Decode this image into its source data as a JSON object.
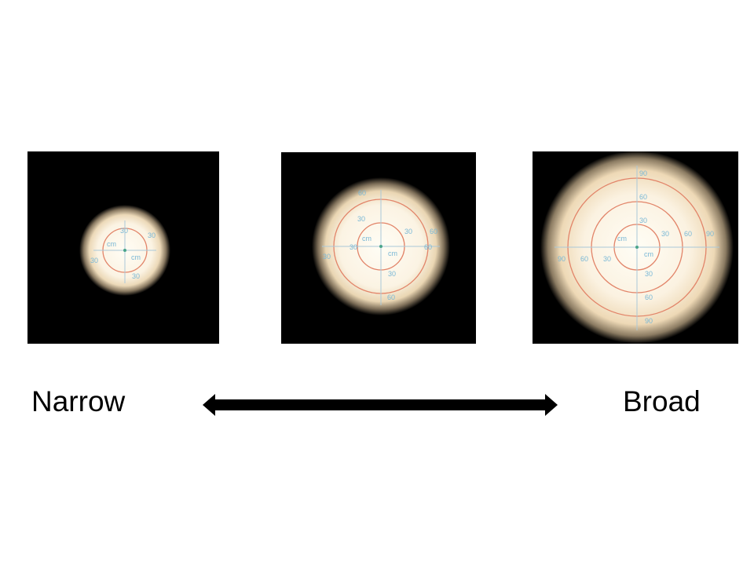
{
  "labels": {
    "left": "Narrow",
    "right": "Broad"
  },
  "panels": [
    {
      "name": "narrow",
      "ticks": [
        "30",
        "30",
        "30",
        "30"
      ],
      "units": [
        "cm",
        "cm"
      ]
    },
    {
      "name": "medium",
      "ticks": [
        "60",
        "30",
        "30",
        "60",
        "30",
        "30",
        "60",
        "30",
        "60"
      ],
      "units": [
        "cm",
        "cm"
      ]
    },
    {
      "name": "broad",
      "ticks": [
        "90",
        "60",
        "30",
        "30",
        "60",
        "90",
        "90",
        "60",
        "30",
        "30",
        "60",
        "90"
      ],
      "units": [
        "cm",
        "cm"
      ]
    }
  ],
  "colors": {
    "background": "#000000",
    "beam_core": "#fffdf4",
    "beam_edge": "#e9d2ae",
    "ring": "#e28469",
    "scale": "#7ab8d6",
    "arrow": "#000000"
  }
}
